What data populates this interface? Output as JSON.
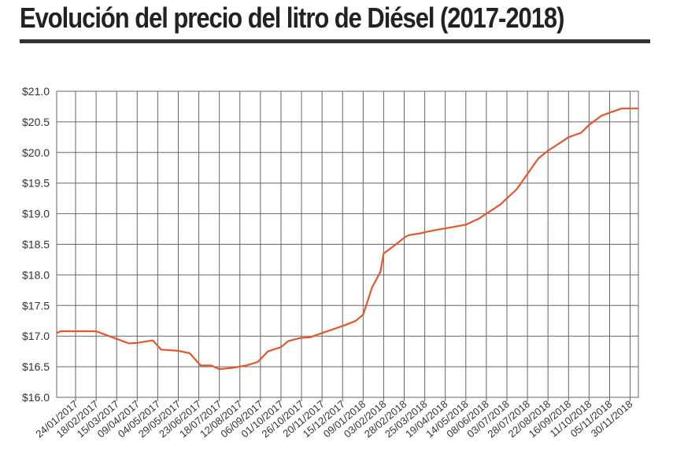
{
  "chart_data": {
    "type": "line",
    "title": "Evolución del precio del litro de Diésel (2017-2018)",
    "xlabel": "",
    "ylabel": "",
    "ylim": [
      16.0,
      21.0
    ],
    "y_ticks": [
      "$16.0",
      "$16.5",
      "$17.0",
      "$17.5",
      "$18.0",
      "$18.5",
      "$19.0",
      "$19.5",
      "$20.0",
      "$20.5",
      "$21.0"
    ],
    "x_ticks": [
      "24/01/2017",
      "18/02/2017",
      "15/03/2017",
      "09/04/2017",
      "04/05/2017",
      "29/05/2017",
      "23/06/2017",
      "18/07/2017",
      "12/08/2017",
      "06/09/2017",
      "01/10/2017",
      "26/10/2017",
      "20/11/2017",
      "15/12/2017",
      "09/01/2018",
      "03/02/2018",
      "28/02/2018",
      "25/03/2018",
      "19/04/2018",
      "14/05/2018",
      "08/06/2018",
      "03/07/2018",
      "28/07/2018",
      "22/08/2018",
      "16/09/2018",
      "11/10/2018",
      "05/11/2018",
      "30/11/2018"
    ],
    "grid": true,
    "line_color": "#e2572b",
    "series": [
      {
        "x": [
          "2017-01-01",
          "2017-01-06",
          "2017-01-24",
          "2017-02-18",
          "2017-03-10",
          "2017-03-30",
          "2017-04-09",
          "2017-04-28",
          "2017-05-08",
          "2017-05-29",
          "2017-06-12",
          "2017-06-25",
          "2017-07-08",
          "2017-07-18",
          "2017-08-02",
          "2017-08-20",
          "2017-09-03",
          "2017-09-15",
          "2017-10-01",
          "2017-10-10",
          "2017-10-25",
          "2017-11-05",
          "2017-11-20",
          "2017-12-05",
          "2017-12-18",
          "2017-12-31",
          "2018-01-09",
          "2018-01-20",
          "2018-01-30",
          "2018-02-03",
          "2018-02-10",
          "2018-02-18",
          "2018-03-01",
          "2018-03-06",
          "2018-03-20",
          "2018-03-26",
          "2018-04-10",
          "2018-04-19",
          "2018-05-14",
          "2018-05-30",
          "2018-06-08",
          "2018-06-25",
          "2018-07-03",
          "2018-07-15",
          "2018-07-28",
          "2018-08-10",
          "2018-08-22",
          "2018-09-05",
          "2018-09-16",
          "2018-10-01",
          "2018-10-11",
          "2018-10-26",
          "2018-11-05",
          "2018-11-20",
          "2018-11-30",
          "2018-12-10"
        ],
        "y": [
          17.05,
          17.08,
          17.08,
          17.08,
          16.98,
          16.88,
          16.89,
          16.93,
          16.78,
          16.76,
          16.72,
          16.52,
          16.52,
          16.46,
          16.48,
          16.52,
          16.58,
          16.75,
          16.82,
          16.92,
          16.97,
          16.98,
          17.05,
          17.12,
          17.18,
          17.25,
          17.35,
          17.8,
          18.05,
          18.35,
          18.42,
          18.5,
          18.62,
          18.65,
          18.68,
          18.7,
          18.74,
          18.76,
          18.82,
          18.92,
          19.0,
          19.15,
          19.25,
          19.4,
          19.65,
          19.9,
          20.03,
          20.15,
          20.25,
          20.32,
          20.45,
          20.6,
          20.65,
          20.72,
          20.72,
          20.72
        ]
      }
    ]
  }
}
